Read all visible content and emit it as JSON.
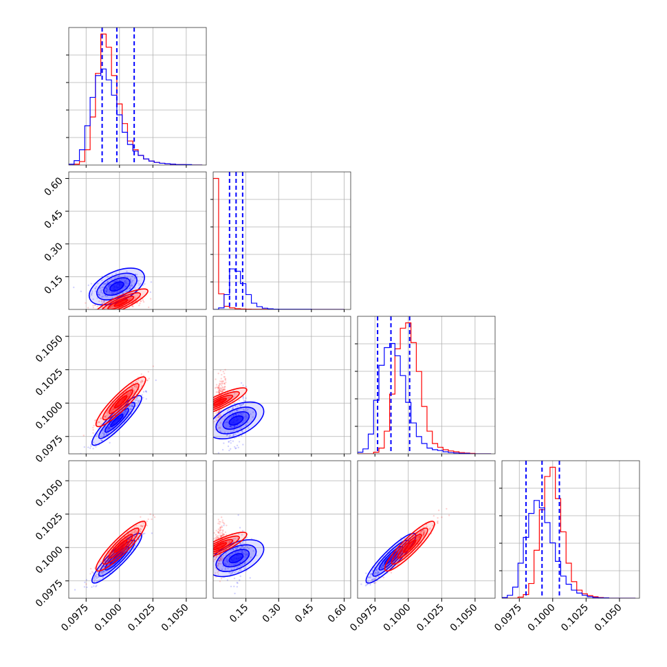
{
  "chart_data": {
    "type": "scatter",
    "subtype": "corner-plot",
    "title": "",
    "grid": true,
    "parameters": [
      {
        "range": [
          0.0962,
          0.1065
        ],
        "ticks": [
          "0.0975",
          "0.1000",
          "0.1025",
          "0.1050"
        ],
        "tick_values": [
          0.0975,
          0.1,
          0.1025,
          0.105
        ]
      },
      {
        "range": [
          0.0,
          0.63
        ],
        "ticks": [
          "0.15",
          "0.30",
          "0.45",
          "0.60"
        ],
        "tick_values": [
          0.15,
          0.3,
          0.45,
          0.6
        ]
      },
      {
        "range": [
          0.0962,
          0.1065
        ],
        "ticks": [
          "0.0975",
          "0.1000",
          "0.1025",
          "0.1050"
        ],
        "tick_values": [
          0.0975,
          0.1,
          0.1025,
          0.105
        ]
      },
      {
        "range": [
          0.0962,
          0.1065
        ],
        "ticks": [
          "0.0975",
          "0.1000",
          "0.1025",
          "0.1050"
        ],
        "tick_values": [
          0.0975,
          0.1,
          0.1025,
          0.105
        ]
      }
    ],
    "series": [
      {
        "color": "#0000ff",
        "quantiles": [
          [
            0.0987,
            0.0998,
            0.1011
          ],
          [
            0.075,
            0.105,
            0.135
          ],
          [
            0.0977,
            0.0987,
            0.1001
          ],
          [
            0.098,
            0.0992,
            0.1005
          ]
        ],
        "histograms": [
          {
            "bins": [
              0.0962,
              0.0966,
              0.097,
              0.0974,
              0.0978,
              0.0982,
              0.0986,
              0.099,
              0.0994,
              0.0998,
              0.1002,
              0.1006,
              0.101,
              0.1014,
              0.1018,
              0.1022,
              0.1026,
              0.103,
              0.1034,
              0.1038,
              0.1042,
              0.1046,
              0.105,
              0.1054,
              0.1058,
              0.1062
            ],
            "counts": [
              2,
              10,
              35,
              90,
              155,
              205,
              220,
              195,
              160,
              115,
              75,
              47,
              32,
              22,
              14,
              9,
              6,
              4,
              3,
              2,
              1,
              1,
              1,
              0,
              0
            ]
          },
          {
            "bins": [
              0.0,
              0.025,
              0.05,
              0.075,
              0.1,
              0.125,
              0.15,
              0.175,
              0.2,
              0.225,
              0.25,
              0.275,
              0.3,
              0.35,
              0.4,
              0.45,
              0.5,
              0.55,
              0.6
            ],
            "counts": [
              0,
              10,
              95,
              260,
              245,
              165,
              95,
              40,
              18,
              8,
              4,
              2,
              1,
              1,
              1,
              0,
              0,
              0
            ]
          },
          {
            "bins": [
              0.0962,
              0.0966,
              0.097,
              0.0974,
              0.0978,
              0.0982,
              0.0986,
              0.099,
              0.0994,
              0.0998,
              0.1002,
              0.1006,
              0.101,
              0.1014,
              0.1018,
              0.1022,
              0.1026,
              0.103,
              0.1034,
              0.1038,
              0.1042,
              0.1046,
              0.105,
              0.1054,
              0.1058,
              0.1062
            ],
            "counts": [
              4,
              12,
              48,
              130,
              215,
              258,
              268,
              238,
              190,
              125,
              75,
              42,
              25,
              14,
              10,
              8,
              5,
              3,
              2,
              1,
              1,
              0,
              0,
              0,
              0
            ]
          },
          {
            "bins": [
              0.0962,
              0.0966,
              0.097,
              0.0974,
              0.0978,
              0.0982,
              0.0986,
              0.099,
              0.0994,
              0.0998,
              0.1002,
              0.1006,
              0.101,
              0.1014,
              0.1018,
              0.1022,
              0.1026,
              0.103,
              0.1034,
              0.1038,
              0.1042,
              0.1046,
              0.105,
              0.1054,
              0.1058,
              0.1062
            ],
            "counts": [
              2,
              8,
              30,
              95,
              165,
              230,
              265,
              245,
              205,
              150,
              100,
              60,
              38,
              22,
              14,
              8,
              4,
              2,
              1,
              1,
              0,
              0,
              0,
              0,
              0
            ]
          }
        ],
        "scatter_centers": [
          0.0998,
          0.105,
          0.0987,
          0.0992
        ]
      },
      {
        "color": "#ff0000",
        "quantiles": [
          null,
          null,
          null,
          null
        ],
        "histograms": [
          {
            "bins": [
              0.0962,
              0.0966,
              0.097,
              0.0974,
              0.0978,
              0.0982,
              0.0986,
              0.099,
              0.0994,
              0.0998,
              0.1002,
              0.1006,
              0.101,
              0.1014,
              0.1018,
              0.1022,
              0.1026,
              0.103,
              0.1034,
              0.1038,
              0.1042,
              0.1046,
              0.105,
              0.1054,
              0.1058,
              0.1062
            ],
            "counts": [
              0,
              2,
              8,
              35,
              110,
              210,
              300,
              270,
              205,
              140,
              95,
              55,
              35,
              22,
              14,
              9,
              6,
              4,
              3,
              2,
              1,
              1,
              0,
              0,
              0
            ]
          },
          {
            "bins": [
              0.0,
              0.025,
              0.05,
              0.075,
              0.1,
              0.125,
              0.15,
              0.175,
              0.2,
              0.225,
              0.25,
              0.275,
              0.3,
              0.35,
              0.4,
              0.45,
              0.5,
              0.55,
              0.6
            ],
            "counts": [
              840,
              100,
              20,
              10,
              5,
              3,
              2,
              1,
              1,
              1,
              0,
              0,
              0,
              0,
              0,
              0,
              0,
              0
            ]
          },
          {
            "bins": [
              0.0962,
              0.0966,
              0.097,
              0.0974,
              0.0978,
              0.0982,
              0.0986,
              0.099,
              0.0994,
              0.0998,
              0.1002,
              0.1006,
              0.101,
              0.1014,
              0.1018,
              0.1022,
              0.1026,
              0.103,
              0.1034,
              0.1038,
              0.1042,
              0.1046,
              0.105,
              0.1054,
              0.1058,
              0.1062
            ],
            "counts": [
              0,
              0,
              0,
              4,
              14,
              55,
              145,
              255,
              305,
              318,
              270,
              200,
              115,
              55,
              25,
              16,
              10,
              7,
              5,
              3,
              2,
              1,
              0,
              0,
              0
            ]
          },
          {
            "bins": [
              0.0962,
              0.0966,
              0.097,
              0.0974,
              0.0978,
              0.0982,
              0.0986,
              0.099,
              0.0994,
              0.0998,
              0.1002,
              0.1006,
              0.101,
              0.1014,
              0.1018,
              0.1022,
              0.1026,
              0.103,
              0.1034,
              0.1038,
              0.1042,
              0.1046,
              0.105,
              0.1054,
              0.1058,
              0.1062
            ],
            "counts": [
              0,
              0,
              0,
              3,
              10,
              40,
              130,
              240,
              330,
              355,
              270,
              180,
              95,
              45,
              22,
              12,
              7,
              4,
              2,
              1,
              0,
              0,
              0,
              0,
              0
            ]
          }
        ],
        "scatter_centers": [
          0.1001,
          0.03,
          0.1001,
          0.1001
        ]
      }
    ]
  }
}
